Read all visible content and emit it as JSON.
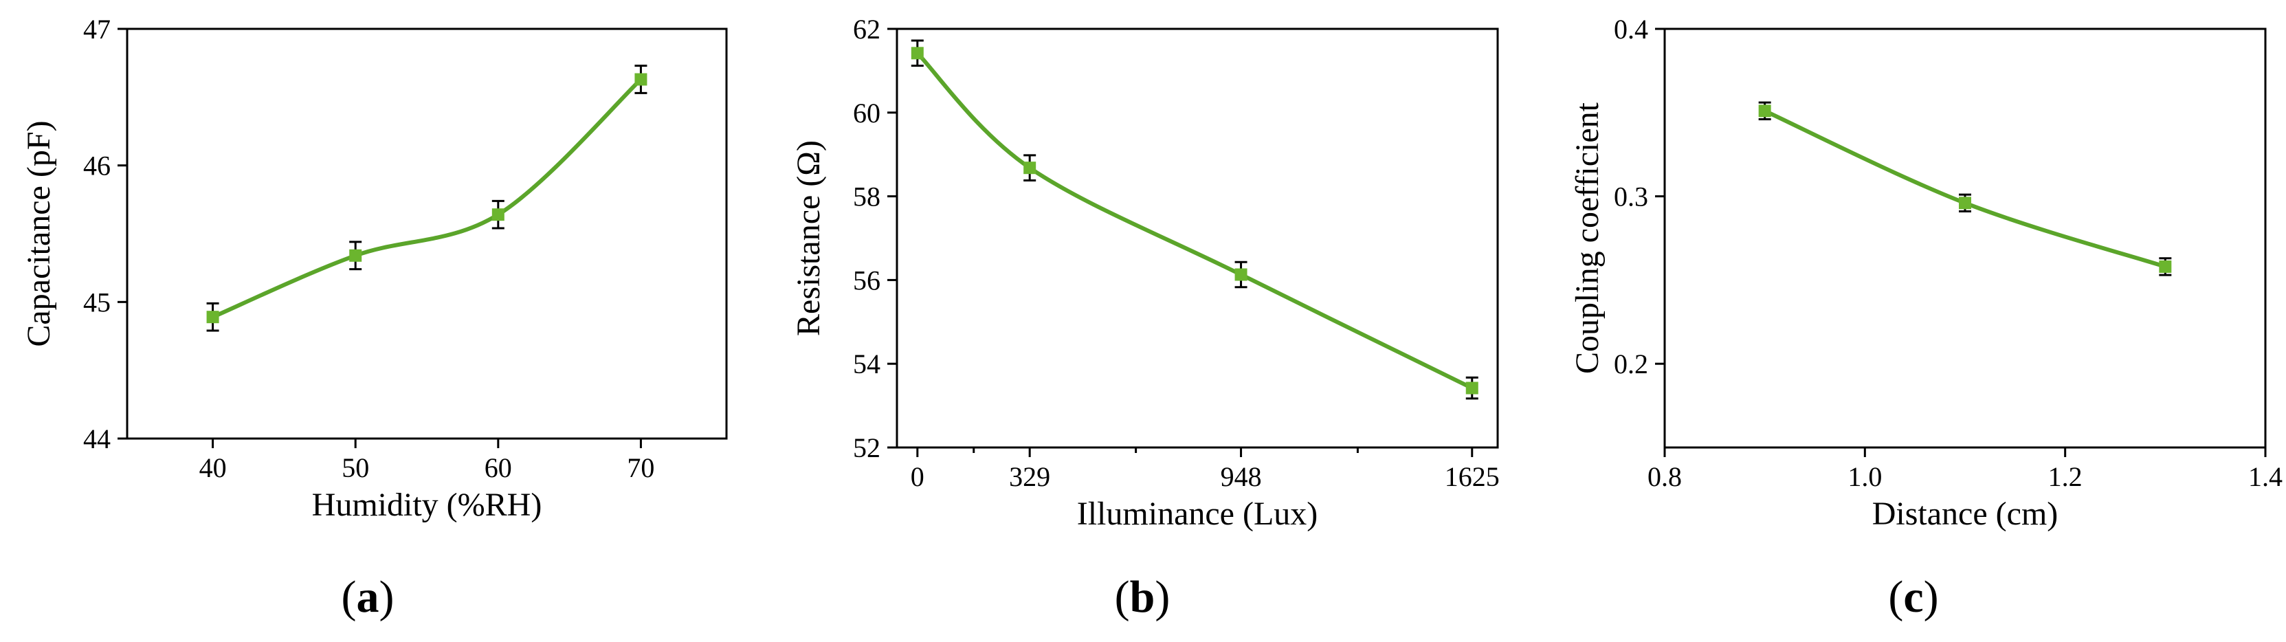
{
  "figure": {
    "series_color": "#5ba52a",
    "marker_color": "#6bb52e",
    "errorbar_color": "#000000"
  },
  "chart_data": [
    {
      "type": "line",
      "panel_label": {
        "open": "(",
        "letter": "a",
        "close": ")"
      },
      "title": "",
      "xlabel": "Humidity (%RH)",
      "ylabel": "Capacitance (pF)",
      "xlim": [
        34,
        76
      ],
      "ylim": [
        44,
        47
      ],
      "xticks": [
        40,
        50,
        60,
        70
      ],
      "xtick_labels": [
        "40",
        "50",
        "60",
        "70"
      ],
      "yticks": [
        44,
        45,
        46,
        47
      ],
      "ytick_labels": [
        "44",
        "45",
        "46",
        "47"
      ],
      "grid": false,
      "legend": "none",
      "smooth": true,
      "series": [
        {
          "x": [
            40,
            50,
            60,
            70
          ],
          "y": [
            44.89,
            45.34,
            45.64,
            46.63
          ],
          "yerr": [
            0.1,
            0.1,
            0.1,
            0.1
          ]
        }
      ]
    },
    {
      "type": "line",
      "panel_label": {
        "open": "(",
        "letter": "b",
        "close": ")"
      },
      "title": "",
      "xlabel": "Illuminance (Lux)",
      "ylabel": "Resistance (Ω)",
      "xlim": [
        -60,
        1700
      ],
      "ylim": [
        52,
        62
      ],
      "xticks": [
        0,
        329,
        948,
        1625
      ],
      "xtick_labels": [
        "0",
        "329",
        "948",
        "1625"
      ],
      "xminor": [
        165,
        640,
        1290
      ],
      "yticks": [
        52,
        54,
        56,
        58,
        60,
        62
      ],
      "ytick_labels": [
        "52",
        "54",
        "56",
        "58",
        "60",
        "62"
      ],
      "grid": false,
      "legend": "none",
      "smooth": true,
      "series": [
        {
          "x": [
            0,
            329,
            948,
            1625
          ],
          "y": [
            61.42,
            58.68,
            56.13,
            53.42
          ],
          "yerr": [
            0.3,
            0.3,
            0.3,
            0.25
          ]
        }
      ]
    },
    {
      "type": "line",
      "panel_label": {
        "open": "(",
        "letter": "c",
        "close": ")"
      },
      "title": "",
      "xlabel": "Distance (cm)",
      "ylabel": "Coupling coefficient",
      "xlim": [
        0.8,
        1.4
      ],
      "ylim": [
        0.15,
        0.4
      ],
      "xticks": [
        0.8,
        1.0,
        1.2,
        1.4
      ],
      "xtick_labels": [
        "0.8",
        "1.0",
        "1.2",
        "1.4"
      ],
      "yticks": [
        0.2,
        0.3,
        0.4
      ],
      "ytick_labels": [
        "0.2",
        "0.3",
        "0.4"
      ],
      "grid": false,
      "legend": "none",
      "smooth": true,
      "series": [
        {
          "x": [
            0.9,
            1.1,
            1.3
          ],
          "y": [
            0.351,
            0.296,
            0.258
          ],
          "yerr": [
            0.005,
            0.005,
            0.005
          ]
        }
      ]
    }
  ]
}
